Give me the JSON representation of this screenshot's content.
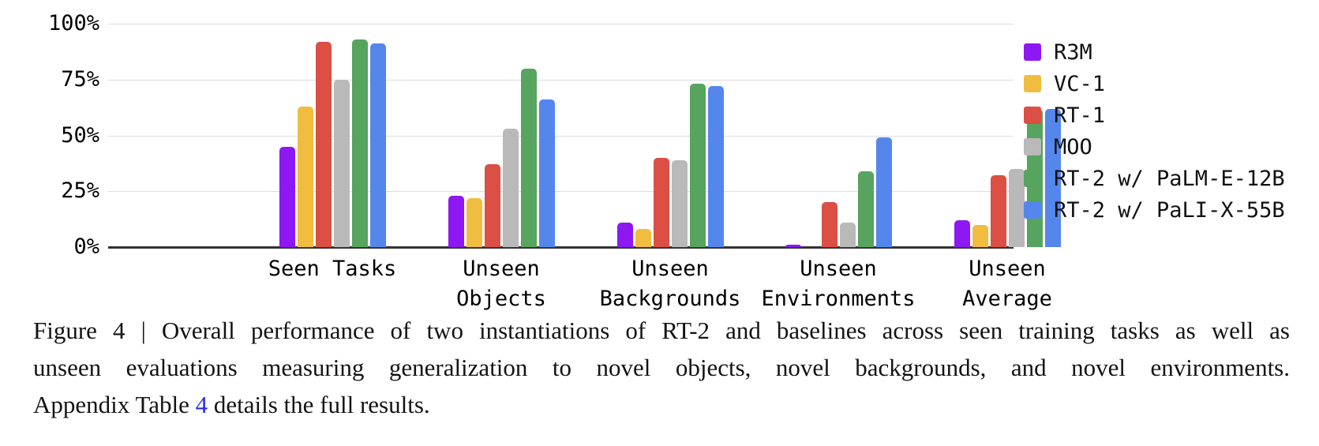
{
  "chart_data": {
    "type": "bar",
    "title": "",
    "xlabel": "",
    "ylabel": "",
    "ylim": [
      0,
      100
    ],
    "grid": true,
    "legend_position": "right",
    "y_ticks": [
      {
        "value": 0,
        "label": "0%"
      },
      {
        "value": 25,
        "label": "25%"
      },
      {
        "value": 50,
        "label": "50%"
      },
      {
        "value": 75,
        "label": "75%"
      },
      {
        "value": 100,
        "label": "100%"
      }
    ],
    "categories": [
      [
        "Seen Tasks"
      ],
      [
        "Unseen",
        "Objects"
      ],
      [
        "Unseen",
        "Backgrounds"
      ],
      [
        "Unseen",
        "Environments"
      ],
      [
        "Unseen",
        "Average"
      ]
    ],
    "series": [
      {
        "name": "R3M",
        "color": "#8d18f2",
        "values": [
          45,
          23,
          11,
          1,
          12
        ]
      },
      {
        "name": "VC-1",
        "color": "#f0bd41",
        "values": [
          63,
          22,
          8,
          0,
          10
        ]
      },
      {
        "name": "RT-1",
        "color": "#db4f44",
        "values": [
          92,
          37,
          40,
          20,
          32
        ]
      },
      {
        "name": "MOO",
        "color": "#b9b9b9",
        "values": [
          75,
          53,
          39,
          11,
          35
        ]
      },
      {
        "name": "RT-2 w/ PaLM-E-12B",
        "color": "#56a45e",
        "values": [
          93,
          80,
          73,
          34,
          62
        ]
      },
      {
        "name": "RT-2 w/ PaLI-X-55B",
        "color": "#5586ec",
        "values": [
          91,
          66,
          72,
          49,
          62
        ]
      }
    ],
    "axis_color": "#333333",
    "gridline_color": "#dcdcdc"
  },
  "caption": {
    "line1": "Figure 4 | Overall performance of two instantiations of RT-2 and baselines across seen training tasks as well as",
    "line2": "unseen evaluations measuring generalization to novel objects, novel backgrounds, and novel environments.",
    "line3_prefix": "Appendix Table ",
    "line3_link": "4",
    "line3_suffix": " details the full results.",
    "link_color": "#2b2be2"
  }
}
